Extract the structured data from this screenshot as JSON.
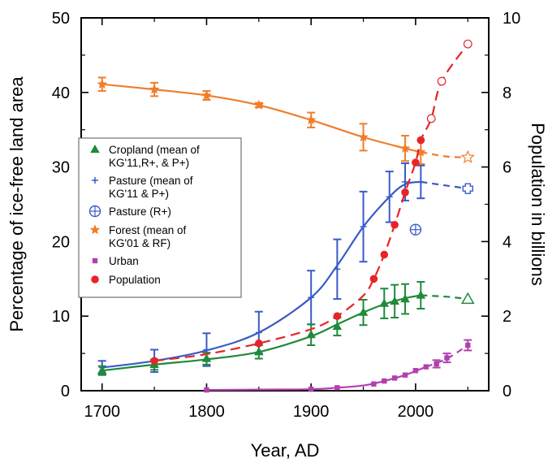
{
  "chart_data": {
    "type": "line",
    "xlabel": "Year, AD",
    "ylabel_left": "Percentage of ice-free land area",
    "ylabel_right": "Population in billions",
    "xlim": [
      1680,
      2070
    ],
    "ylim_left": [
      0,
      50
    ],
    "ylim_right": [
      0,
      10
    ],
    "x_ticks": [
      1700,
      1800,
      1900,
      2000
    ],
    "x_minor_ticks": [
      1750,
      1850,
      1950,
      2050
    ],
    "y_left_ticks": [
      0,
      10,
      20,
      30,
      40,
      50
    ],
    "y_right_ticks": [
      0,
      2,
      4,
      6,
      8,
      10
    ],
    "grid": false,
    "legend_position": "middle-left",
    "legend": [
      {
        "label_lines": [
          "Cropland (mean of",
          "KG'11,R+, & P+)"
        ],
        "marker": "triangle",
        "color": "#1f8a3b"
      },
      {
        "label_lines": [
          "Pasture (mean of",
          "KG'11 & P+)"
        ],
        "marker": "plus",
        "color": "#3a5bc7"
      },
      {
        "label_lines": [
          "Pasture (R+)"
        ],
        "marker": "circle-plus",
        "color": "#3a5bc7"
      },
      {
        "label_lines": [
          "Forest (mean of",
          "KG'01 & RF)"
        ],
        "marker": "star",
        "color": "#f07d2a"
      },
      {
        "label_lines": [
          "Urban"
        ],
        "marker": "square",
        "color": "#b23fb0"
      },
      {
        "label_lines": [
          "Population"
        ],
        "marker": "dot",
        "color": "#e8232a"
      }
    ],
    "series": [
      {
        "name": "Forest (mean of KG'01 & RF)",
        "axis": "left",
        "color": "#f07d2a",
        "marker": "star",
        "x": [
          1700,
          1750,
          1800,
          1850,
          1900,
          1950,
          1990,
          2005
        ],
        "y": [
          41.1,
          40.4,
          39.6,
          38.3,
          36.3,
          34.0,
          32.5,
          32.0
        ],
        "err": [
          0.9,
          0.9,
          0.6,
          0.3,
          1.0,
          1.8,
          1.7,
          1.6
        ],
        "curve": [
          [
            1700,
            41.1
          ],
          [
            1750,
            40.4
          ],
          [
            1800,
            39.6
          ],
          [
            1850,
            38.3
          ],
          [
            1900,
            36.3
          ],
          [
            1950,
            34.0
          ],
          [
            1990,
            32.5
          ],
          [
            2005,
            32.0
          ]
        ],
        "projection": [
          [
            2005,
            32.0
          ],
          [
            2030,
            31.4
          ],
          [
            2050,
            31.3
          ]
        ],
        "projection_point": {
          "x": 2050,
          "y": 31.3,
          "marker": "open-star"
        }
      },
      {
        "name": "Pasture (mean of KG'11 & P+)",
        "axis": "left",
        "color": "#3a5bc7",
        "marker": "plus",
        "x": [
          1700,
          1750,
          1800,
          1850,
          1900,
          1925,
          1950,
          1975,
          1990,
          2005
        ],
        "y": [
          3.1,
          4.0,
          5.5,
          7.8,
          12.5,
          16.3,
          22.0,
          26.0,
          28.0,
          28.0
        ],
        "err": [
          0.9,
          1.5,
          2.2,
          2.8,
          3.6,
          4.0,
          4.7,
          3.4,
          2.5,
          2.2
        ],
        "curve": [
          [
            1700,
            3.1
          ],
          [
            1750,
            4.0
          ],
          [
            1800,
            5.4
          ],
          [
            1850,
            7.8
          ],
          [
            1900,
            12.5
          ],
          [
            1925,
            16.8
          ],
          [
            1950,
            22.0
          ],
          [
            1975,
            26.0
          ],
          [
            1990,
            27.7
          ],
          [
            2005,
            28.0
          ]
        ],
        "projection": [
          [
            2005,
            28.0
          ],
          [
            2030,
            27.5
          ],
          [
            2050,
            27.1
          ]
        ],
        "projection_point": {
          "x": 2050,
          "y": 27.1,
          "marker": "open-plus"
        }
      },
      {
        "name": "Pasture (R+)",
        "axis": "left",
        "color": "#3a5bc7",
        "marker": "circle-plus",
        "x": [
          2000
        ],
        "y": [
          21.6
        ]
      },
      {
        "name": "Cropland (mean of KG'11,R+, & P+)",
        "axis": "left",
        "color": "#1f8a3b",
        "marker": "triangle",
        "x": [
          1700,
          1750,
          1800,
          1850,
          1900,
          1925,
          1950,
          1970,
          1980,
          1990,
          2005
        ],
        "y": [
          2.7,
          3.5,
          4.3,
          5.2,
          7.5,
          8.6,
          10.5,
          11.7,
          12.0,
          12.3,
          12.8
        ],
        "err": [
          0.6,
          0.7,
          0.8,
          0.9,
          1.4,
          1.2,
          1.7,
          2.0,
          2.2,
          2.0,
          1.8
        ],
        "curve": [
          [
            1700,
            2.7
          ],
          [
            1750,
            3.5
          ],
          [
            1800,
            4.2
          ],
          [
            1850,
            5.2
          ],
          [
            1900,
            7.3
          ],
          [
            1925,
            8.9
          ],
          [
            1950,
            10.5
          ],
          [
            1970,
            11.6
          ],
          [
            1990,
            12.4
          ],
          [
            2005,
            12.8
          ]
        ],
        "projection": [
          [
            2005,
            12.8
          ],
          [
            2030,
            12.6
          ],
          [
            2050,
            12.3
          ]
        ],
        "projection_point": {
          "x": 2050,
          "y": 12.3,
          "marker": "open-triangle"
        }
      },
      {
        "name": "Urban",
        "axis": "left",
        "color": "#b23fb0",
        "marker": "square",
        "x": [
          1800,
          1900,
          1925,
          1960,
          1970,
          1980,
          1990,
          2000,
          2010,
          2020,
          2030,
          2050
        ],
        "y": [
          0.1,
          0.2,
          0.4,
          0.9,
          1.3,
          1.7,
          2.1,
          2.7,
          3.2,
          3.6,
          4.4,
          6.1
        ],
        "err": [
          0,
          0,
          0,
          0,
          0,
          0,
          0,
          0,
          0,
          0.5,
          0.6,
          0.7
        ],
        "curve": [
          [
            1800,
            0.1
          ],
          [
            1850,
            0.15
          ],
          [
            1900,
            0.2
          ],
          [
            1925,
            0.4
          ],
          [
            1950,
            0.7
          ],
          [
            1970,
            1.3
          ],
          [
            1990,
            2.1
          ],
          [
            2010,
            3.2
          ]
        ],
        "projection": [
          [
            2010,
            3.2
          ],
          [
            2030,
            4.3
          ],
          [
            2050,
            6.1
          ]
        ]
      },
      {
        "name": "Population",
        "axis": "right",
        "color": "#e8232a",
        "marker": "dot",
        "x": [
          1750,
          1850,
          1925,
          1960,
          1970,
          1980,
          1990,
          2000,
          2005
        ],
        "y": [
          0.8,
          1.27,
          2.0,
          3.0,
          3.65,
          4.45,
          5.32,
          6.12,
          6.72
        ],
        "projected": {
          "x": [
            2015,
            2025,
            2050
          ],
          "y": [
            7.3,
            8.3,
            9.3
          ]
        },
        "curve": [
          [
            1750,
            0.8
          ],
          [
            1800,
            0.98
          ],
          [
            1850,
            1.27
          ],
          [
            1900,
            1.65
          ],
          [
            1925,
            2.0
          ],
          [
            1950,
            2.55
          ],
          [
            1960,
            3.0
          ],
          [
            1970,
            3.65
          ],
          [
            1980,
            4.45
          ],
          [
            1990,
            5.32
          ],
          [
            2000,
            6.12
          ],
          [
            2005,
            6.72
          ],
          [
            2015,
            7.3
          ],
          [
            2025,
            8.3
          ],
          [
            2050,
            9.3
          ]
        ]
      }
    ]
  }
}
